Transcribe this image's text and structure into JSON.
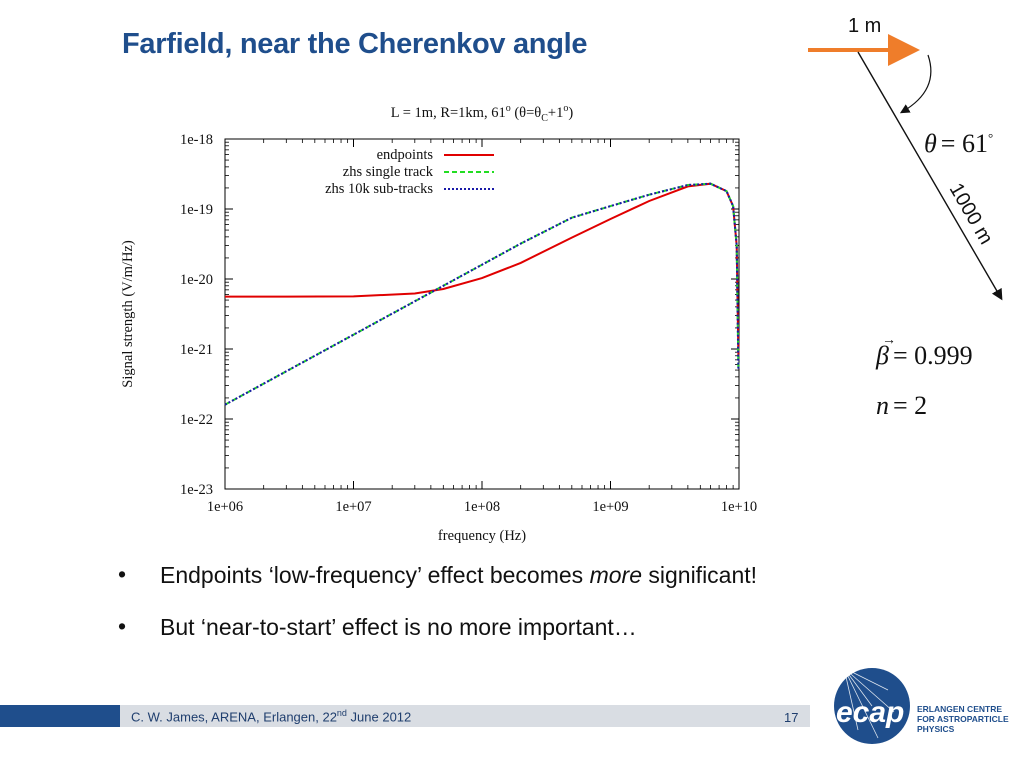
{
  "slide": {
    "title": "Farfield, near the Cherenkov angle",
    "bullets": [
      {
        "pre": "Endpoints ‘low-frequency’ effect becomes ",
        "em": "more",
        "post": " significant!"
      },
      {
        "pre": "But ‘near-to-start’ effect is no more important…",
        "em": "",
        "post": ""
      }
    ],
    "footer": {
      "pre": "C. W. James, ARENA, Erlangen, 22",
      "sup": "nd",
      "post": " June 2012"
    },
    "page_number": "17",
    "logo": {
      "mark": "ecap",
      "lines": [
        "ERLANGEN CENTRE",
        "FOR ASTROPARTICLE",
        "PHYSICS"
      ]
    }
  },
  "geometry_diagram": {
    "distance_short": "1 m",
    "distance_long": "1000 m",
    "angle_label": "θ = 61°",
    "beta_label": "β = 0.999",
    "n_label": "n = 2",
    "arrow_color": "#ef7d2a"
  },
  "chart_data": {
    "type": "line",
    "title": "L = 1m, R=1km, 61° (θ=θC+1°)",
    "xlabel": "frequency (Hz)",
    "ylabel": "Signal strength (V/m/Hz)",
    "xscale": "log",
    "yscale": "log",
    "xlim": [
      1000000.0,
      10000000000.0
    ],
    "ylim": [
      1e-23,
      1e-18
    ],
    "x_ticks": [
      "1e+06",
      "1e+07",
      "1e+08",
      "1e+09",
      "1e+10"
    ],
    "y_ticks": [
      "1e-18",
      "1e-19",
      "1e-20",
      "1e-21",
      "1e-22",
      "1e-23"
    ],
    "legend_position": "top-left",
    "grid": false,
    "series": [
      {
        "name": "endpoints",
        "color": "#e00000",
        "dash": "solid",
        "x": [
          1000000.0,
          3000000.0,
          10000000.0,
          30000000.0,
          50000000.0,
          100000000.0,
          200000000.0,
          500000000.0,
          1000000000.0,
          2000000000.0,
          4000000000.0,
          6000000000.0,
          8000000000.0,
          9000000000.0,
          9600000000.0,
          9900000000.0
        ],
        "y": [
          5.6e-21,
          5.6e-21,
          5.65e-21,
          6.2e-21,
          7.2e-21,
          1.03e-20,
          1.7e-20,
          3.9e-20,
          7.2e-20,
          1.3e-19,
          2.1e-19,
          2.3e-19,
          1.8e-19,
          1.1e-19,
          3e-20,
          8e-22
        ]
      },
      {
        "name": "zhs single track",
        "color": "#22dd22",
        "dash": "dashed",
        "x": [
          1000000.0,
          3000000.0,
          10000000.0,
          30000000.0,
          50000000.0,
          100000000.0,
          200000000.0,
          500000000.0,
          1000000000.0,
          2000000000.0,
          4000000000.0,
          6000000000.0,
          8000000000.0,
          9000000000.0,
          9600000000.0,
          9900000000.0
        ],
        "y": [
          1.6e-22,
          4.8e-22,
          1.6e-21,
          4.8e-21,
          8e-21,
          1.6e-20,
          3.2e-20,
          7.5e-20,
          1.1e-19,
          1.6e-19,
          2.2e-19,
          2.3e-19,
          1.8e-19,
          1.1e-19,
          3e-20,
          5e-22
        ]
      },
      {
        "name": "zhs 10k sub-tracks",
        "color": "#1a1aa8",
        "dash": "dotted",
        "x": [
          1000000.0,
          3000000.0,
          10000000.0,
          30000000.0,
          50000000.0,
          100000000.0,
          200000000.0,
          500000000.0,
          1000000000.0,
          2000000000.0,
          4000000000.0,
          6000000000.0,
          8000000000.0,
          9000000000.0,
          9600000000.0,
          9900000000.0
        ],
        "y": [
          1.6e-22,
          4.8e-22,
          1.6e-21,
          4.8e-21,
          8e-21,
          1.6e-20,
          3.2e-20,
          7.5e-20,
          1.1e-19,
          1.6e-19,
          2.2e-19,
          2.3e-19,
          1.8e-19,
          1.1e-19,
          3e-20,
          5e-22
        ]
      }
    ]
  }
}
